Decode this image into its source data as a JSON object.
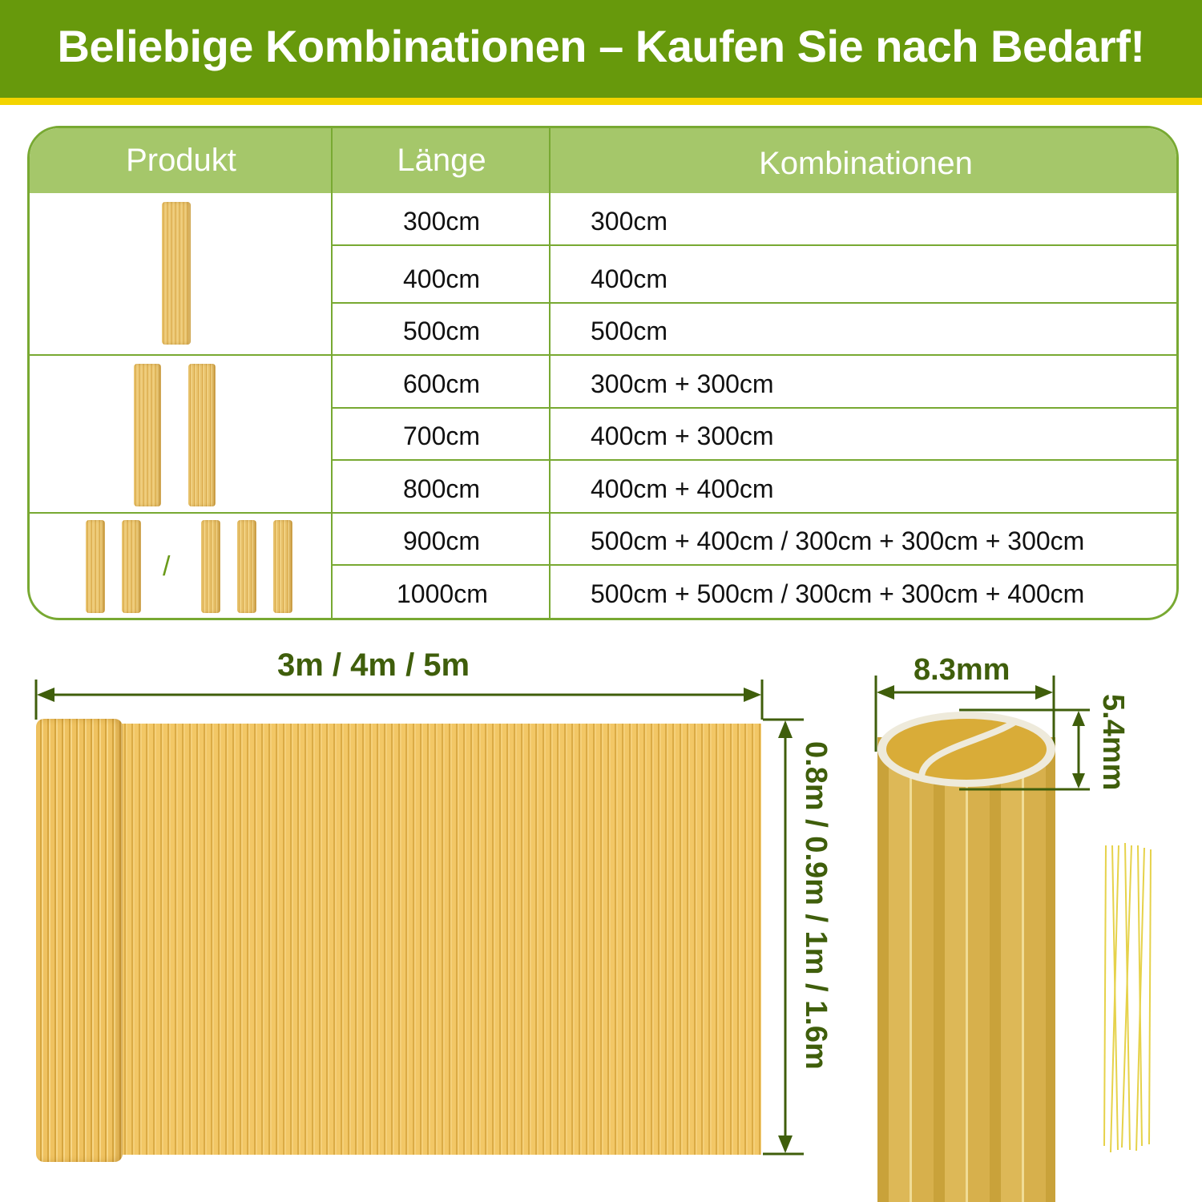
{
  "banner": {
    "title": "Beliebige Kombinationen – Kaufen Sie nach Bedarf!"
  },
  "table": {
    "headers": {
      "product": "Produkt",
      "length": "Länge",
      "combinations": "Kombinationen"
    },
    "rows": [
      {
        "length": "300cm",
        "combination": "300cm"
      },
      {
        "length": "400cm",
        "combination": "400cm"
      },
      {
        "length": "500cm",
        "combination": "500cm"
      },
      {
        "length": "600cm",
        "combination": "300cm + 300cm"
      },
      {
        "length": "700cm",
        "combination": "400cm + 300cm"
      },
      {
        "length": "800cm",
        "combination": "400cm + 400cm"
      },
      {
        "length": "900cm",
        "combination": "500cm + 400cm / 300cm + 300cm + 300cm"
      },
      {
        "length": "1000cm",
        "combination": "500cm + 500cm / 300cm + 300cm + 400cm"
      }
    ],
    "group_separator": "/"
  },
  "dimensions": {
    "length": "3m / 4m / 5m",
    "height": "0.8m / 0.9m / 1m  / 1.6m",
    "tube_width": "8.3mm",
    "tube_height": "5.4mm"
  },
  "colors": {
    "banner": "#67990c",
    "stripe": "#f3d400",
    "table_header": "#a5c76a",
    "border": "#78a932",
    "dimension": "#3f5e0b"
  }
}
